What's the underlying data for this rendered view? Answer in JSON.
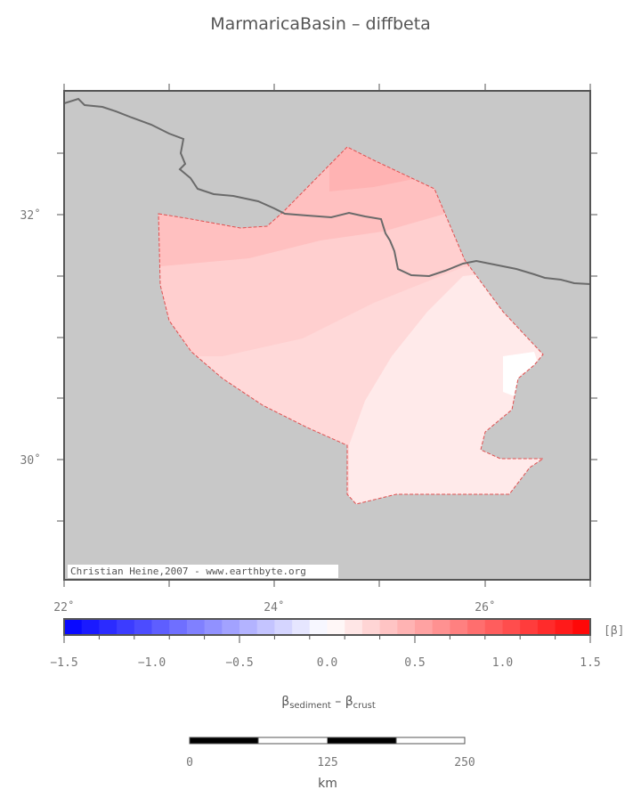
{
  "title": "MarmaricaBasin – diffbeta",
  "map": {
    "lon_labels": [
      "22˚",
      "24˚",
      "26˚"
    ],
    "lat_labels": [
      "32˚",
      "30˚"
    ],
    "credit": "Christian Heine,2007 - www.earthbyte.org",
    "background_color": "#c8c8c8",
    "coastline_color": "#6a6a6a",
    "basin_outline_color": "#e05050"
  },
  "colorbar": {
    "unit": "[β]",
    "tick_labels": [
      "−1.5",
      "−1.0",
      "−0.5",
      "0.0",
      "0.5",
      "1.0",
      "1.5"
    ],
    "min": -1.5,
    "max": 1.5,
    "label_main": "β",
    "label_sub1": "sediment",
    "label_mid": " – β",
    "label_sub2": "crust",
    "low_color": "#0000ff",
    "mid_color": "#ffffff",
    "high_color": "#ff0000"
  },
  "scalebar": {
    "labels": [
      "0",
      "125",
      "250"
    ],
    "unit": "km"
  }
}
